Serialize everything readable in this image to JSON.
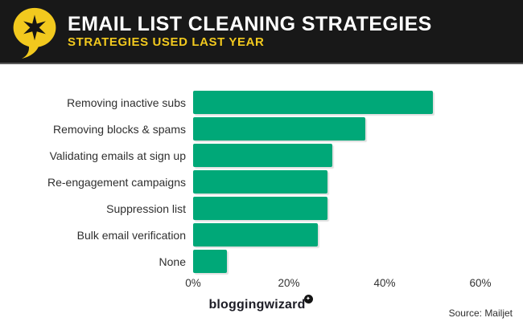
{
  "header": {
    "title": "EMAIL LIST CLEANING STRATEGIES",
    "subtitle": "STRATEGIES USED LAST YEAR",
    "logo": "speech-bubble-with-star"
  },
  "chart_data": {
    "type": "bar",
    "orientation": "horizontal",
    "title": "EMAIL LIST CLEANING STRATEGIES",
    "subtitle": "STRATEGIES USED LAST YEAR",
    "categories": [
      "Removing inactive subs",
      "Removing blocks & spams",
      "Validating emails at sign up",
      "Re-engagement campaigns",
      "Suppression list",
      "Bulk email verification",
      "None"
    ],
    "values": [
      50,
      36,
      29,
      28,
      28,
      26,
      7
    ],
    "unit": "%",
    "xlabel": "",
    "ylabel": "",
    "xlim": [
      0,
      60
    ],
    "x_ticks": [
      "0%",
      "20%",
      "40%",
      "60%"
    ],
    "grid": false,
    "legend": false
  },
  "footer": {
    "brand": "bloggingwizard",
    "brand_badge_icon": "star-badge",
    "source": "Source: Mailjet"
  },
  "colors": {
    "bar": "#00a878",
    "header_bg": "#181818",
    "accent_yellow": "#f2c91e",
    "title_text": "#ffffff",
    "label_text": "#2f2f2f"
  }
}
